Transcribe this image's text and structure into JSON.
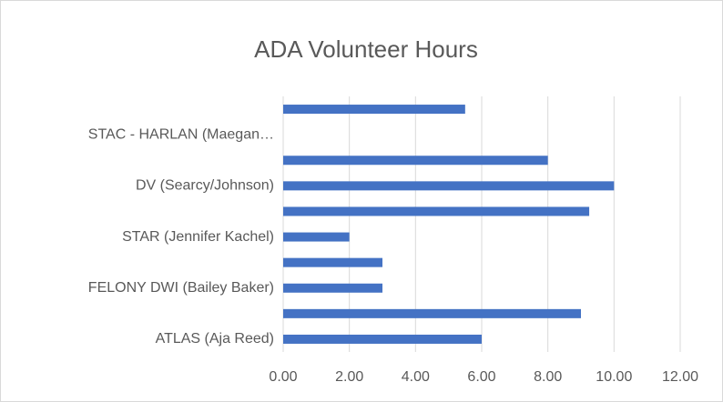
{
  "chart_data": {
    "type": "bar",
    "orientation": "horizontal",
    "title": "ADA Volunteer Hours",
    "categories": [
      "ATLAS (Aja Reed)",
      null,
      "FELONY DWI (Bailey Baker)",
      null,
      "STAR (Jennifer Kachel)",
      null,
      "DV (Searcy/Johnson)",
      null,
      "STAC - HARLAN (Maegan…",
      null
    ],
    "values": [
      6,
      9,
      3,
      3,
      2,
      9.25,
      10,
      8,
      0,
      5.5
    ],
    "color": "#4472c4",
    "xlim": [
      0,
      12
    ],
    "xticks": [
      {
        "value": 0,
        "label": "0.00"
      },
      {
        "value": 2,
        "label": "2.00"
      },
      {
        "value": 4,
        "label": "4.00"
      },
      {
        "value": 6,
        "label": "6.00"
      },
      {
        "value": 8,
        "label": "8.00"
      },
      {
        "value": 10,
        "label": "10.00"
      },
      {
        "value": 12,
        "label": "12.00"
      }
    ],
    "grid": true
  }
}
